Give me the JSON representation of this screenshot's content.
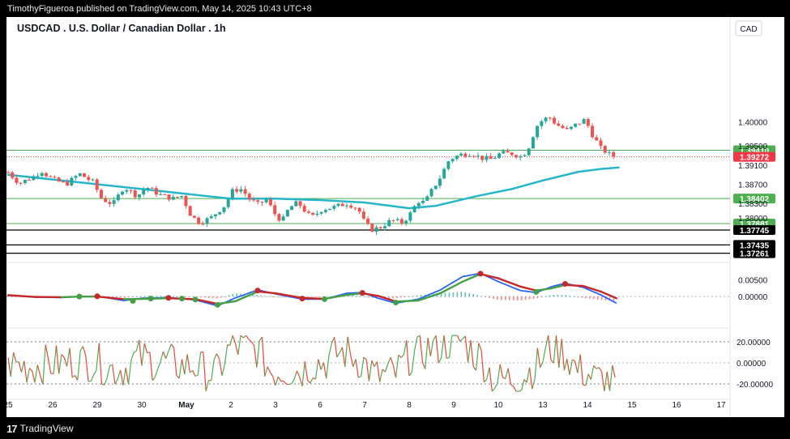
{
  "publisher_line": "TimothyFigueroa published on TradingView.com, May 14, 2025 10:43 UTC+8",
  "footer": {
    "logo": "17",
    "brand": "TradingView"
  },
  "chart_data": {
    "type": "candlestick",
    "title": "USDCAD . U.S. Dollar / Canadian Dollar . 1h",
    "currency_label": "CAD",
    "colors": {
      "up": "#26a69a",
      "down": "#ef5350",
      "ema": "#26b6c9",
      "green_level": "#4caf50",
      "black_level": "#000000",
      "last_price": "#f23645",
      "macd": "#2962ff",
      "signal": "#c62828",
      "signal_up": "#43a047"
    },
    "price_axis": {
      "ylim": [
        1.3712,
        1.4165
      ],
      "ticks": [
        "1.40000",
        "1.39500",
        "1.39100",
        "1.38700",
        "1.38300",
        "1.38000"
      ]
    },
    "x_axis": {
      "xlim": [
        0,
        16.3
      ],
      "labels": [
        {
          "x": 0,
          "label": "25"
        },
        {
          "x": 1,
          "label": "26"
        },
        {
          "x": 2,
          "label": "29"
        },
        {
          "x": 3,
          "label": "30"
        },
        {
          "x": 4,
          "label": "May"
        },
        {
          "x": 5,
          "label": "2"
        },
        {
          "x": 6,
          "label": "3"
        },
        {
          "x": 7,
          "label": "6"
        },
        {
          "x": 8,
          "label": "7"
        },
        {
          "x": 9,
          "label": "8"
        },
        {
          "x": 10,
          "label": "9"
        },
        {
          "x": 11,
          "label": "10"
        },
        {
          "x": 12,
          "label": "13"
        },
        {
          "x": 13,
          "label": "14"
        },
        {
          "x": 14,
          "label": "15"
        },
        {
          "x": 15,
          "label": "16"
        },
        {
          "x": 16,
          "label": "17"
        }
      ]
    },
    "price_path": [
      [
        0.0,
        1.3895
      ],
      [
        0.25,
        1.3872
      ],
      [
        0.55,
        1.3885
      ],
      [
        0.75,
        1.3898
      ],
      [
        1.0,
        1.388
      ],
      [
        1.3,
        1.387
      ],
      [
        1.6,
        1.3892
      ],
      [
        1.9,
        1.3875
      ],
      [
        2.1,
        1.384
      ],
      [
        2.35,
        1.3828
      ],
      [
        2.6,
        1.3865
      ],
      [
        2.9,
        1.3845
      ],
      [
        3.1,
        1.3865
      ],
      [
        3.4,
        1.3848
      ],
      [
        3.7,
        1.384
      ],
      [
        3.9,
        1.3846
      ],
      [
        4.1,
        1.3805
      ],
      [
        4.3,
        1.379
      ],
      [
        4.55,
        1.38
      ],
      [
        4.85,
        1.3825
      ],
      [
        5.05,
        1.3858
      ],
      [
        5.25,
        1.386
      ],
      [
        5.4,
        1.384
      ],
      [
        5.6,
        1.3828
      ],
      [
        5.8,
        1.3838
      ],
      [
        6.0,
        1.3806
      ],
      [
        6.15,
        1.3793
      ],
      [
        6.3,
        1.382
      ],
      [
        6.5,
        1.3832
      ],
      [
        6.8,
        1.38
      ],
      [
        7.05,
        1.3818
      ],
      [
        7.3,
        1.3822
      ],
      [
        7.6,
        1.383
      ],
      [
        7.85,
        1.382
      ],
      [
        8.0,
        1.379
      ],
      [
        8.15,
        1.3775
      ],
      [
        8.35,
        1.378
      ],
      [
        8.6,
        1.3795
      ],
      [
        8.85,
        1.379
      ],
      [
        9.0,
        1.3805
      ],
      [
        9.2,
        1.3835
      ],
      [
        9.35,
        1.3832
      ],
      [
        9.5,
        1.3856
      ],
      [
        9.7,
        1.3885
      ],
      [
        9.9,
        1.3922
      ],
      [
        10.15,
        1.3932
      ],
      [
        10.4,
        1.3935
      ],
      [
        10.6,
        1.3925
      ],
      [
        10.85,
        1.3922
      ],
      [
        11.05,
        1.3935
      ],
      [
        11.3,
        1.3934
      ],
      [
        11.5,
        1.3928
      ],
      [
        11.65,
        1.394
      ],
      [
        11.85,
        1.399
      ],
      [
        12.0,
        1.4005
      ],
      [
        12.15,
        1.401
      ],
      [
        12.3,
        1.3995
      ],
      [
        12.55,
        1.3982
      ],
      [
        12.75,
        1.3995
      ],
      [
        12.95,
        1.4005
      ],
      [
        13.1,
        1.3975
      ],
      [
        13.3,
        1.3945
      ],
      [
        13.5,
        1.3932
      ],
      [
        13.65,
        1.3927
      ]
    ],
    "ema_path": [
      [
        0.0,
        1.389
      ],
      [
        1.0,
        1.388
      ],
      [
        2.0,
        1.387
      ],
      [
        3.0,
        1.386
      ],
      [
        4.0,
        1.385
      ],
      [
        5.0,
        1.384
      ],
      [
        6.0,
        1.384
      ],
      [
        7.0,
        1.3837
      ],
      [
        8.0,
        1.3832
      ],
      [
        9.0,
        1.382
      ],
      [
        9.6,
        1.3825
      ],
      [
        10.5,
        1.3845
      ],
      [
        11.3,
        1.386
      ],
      [
        12.0,
        1.3878
      ],
      [
        12.8,
        1.3896
      ],
      [
        13.3,
        1.3902
      ],
      [
        13.7,
        1.3905
      ]
    ],
    "horizontal_levels": [
      {
        "price": "1.39410",
        "value": 1.3941,
        "kind": "green"
      },
      {
        "price": "1.39272",
        "value": 1.39272,
        "kind": "last"
      },
      {
        "price": "1.38402",
        "value": 1.38402,
        "kind": "green"
      },
      {
        "price": "1.37881",
        "value": 1.37881,
        "kind": "green"
      },
      {
        "price": "1.37745",
        "value": 1.37745,
        "kind": "black"
      },
      {
        "price": "1.37435",
        "value": 1.37435,
        "kind": "black"
      },
      {
        "price": "1.37261",
        "value": 1.37261,
        "kind": "black"
      }
    ],
    "macd_pane": {
      "ylim": [
        -0.0085,
        0.0093
      ],
      "ticks": [
        "0.00500",
        "0.00000"
      ],
      "tick_values": [
        0.005,
        0.0
      ],
      "macd": [
        [
          0.0,
          0.0005
        ],
        [
          0.6,
          -0.0002
        ],
        [
          1.2,
          -0.0003
        ],
        [
          1.6,
          0.0
        ],
        [
          2.0,
          0.0001
        ],
        [
          2.6,
          -0.0012
        ],
        [
          3.0,
          -0.0005
        ],
        [
          3.6,
          -0.0003
        ],
        [
          4.2,
          -0.001
        ],
        [
          4.7,
          -0.0028
        ],
        [
          5.1,
          -0.0004
        ],
        [
          5.6,
          0.002
        ],
        [
          6.0,
          0.0008
        ],
        [
          6.6,
          -0.0008
        ],
        [
          7.1,
          -0.0008
        ],
        [
          7.6,
          0.001
        ],
        [
          7.95,
          0.0012
        ],
        [
          8.3,
          -0.0005
        ],
        [
          8.7,
          -0.002
        ],
        [
          9.2,
          -0.0008
        ],
        [
          9.7,
          0.002
        ],
        [
          10.2,
          0.006
        ],
        [
          10.6,
          0.007
        ],
        [
          11.0,
          0.0045
        ],
        [
          11.5,
          0.0018
        ],
        [
          11.85,
          0.0012
        ],
        [
          12.2,
          0.003
        ],
        [
          12.5,
          0.004
        ],
        [
          12.9,
          0.0028
        ],
        [
          13.3,
          0.0005
        ],
        [
          13.65,
          -0.002
        ]
      ],
      "signal": [
        [
          0.0,
          0.0004
        ],
        [
          0.6,
          -0.0001
        ],
        [
          1.2,
          -0.0002
        ],
        [
          1.6,
          0.0
        ],
        [
          2.0,
          0.0
        ],
        [
          2.6,
          -0.0008
        ],
        [
          3.0,
          -0.0007
        ],
        [
          3.6,
          -0.0005
        ],
        [
          4.2,
          -0.0008
        ],
        [
          4.7,
          -0.0022
        ],
        [
          5.1,
          -0.0014
        ],
        [
          5.6,
          0.0015
        ],
        [
          6.0,
          0.001
        ],
        [
          6.6,
          -0.0004
        ],
        [
          7.1,
          -0.0007
        ],
        [
          7.6,
          0.0005
        ],
        [
          7.95,
          0.001
        ],
        [
          8.3,
          0.0002
        ],
        [
          8.7,
          -0.0015
        ],
        [
          9.2,
          -0.0012
        ],
        [
          9.7,
          0.001
        ],
        [
          10.2,
          0.0045
        ],
        [
          10.6,
          0.0068
        ],
        [
          11.0,
          0.0055
        ],
        [
          11.5,
          0.003
        ],
        [
          11.85,
          0.0018
        ],
        [
          12.2,
          0.0025
        ],
        [
          12.5,
          0.0035
        ],
        [
          12.9,
          0.0032
        ],
        [
          13.3,
          0.0015
        ],
        [
          13.65,
          -0.0005
        ]
      ],
      "cross_dots": [
        {
          "x": 1.6,
          "y": 0.0,
          "color": "green"
        },
        {
          "x": 2.0,
          "y": 0.0001,
          "color": "red"
        },
        {
          "x": 2.8,
          "y": -0.0013,
          "color": "green"
        },
        {
          "x": 3.2,
          "y": -0.0006,
          "color": "green"
        },
        {
          "x": 3.6,
          "y": -0.0004,
          "color": "red"
        },
        {
          "x": 3.9,
          "y": -0.0006,
          "color": "green"
        },
        {
          "x": 4.2,
          "y": -0.0009,
          "color": "green"
        },
        {
          "x": 4.7,
          "y": -0.0025,
          "color": "green"
        },
        {
          "x": 5.6,
          "y": 0.0018,
          "color": "red"
        },
        {
          "x": 6.6,
          "y": -0.0006,
          "color": "red"
        },
        {
          "x": 7.1,
          "y": -0.0008,
          "color": "green"
        },
        {
          "x": 7.95,
          "y": 0.0011,
          "color": "red"
        },
        {
          "x": 8.7,
          "y": -0.0018,
          "color": "green"
        },
        {
          "x": 10.6,
          "y": 0.0069,
          "color": "red"
        },
        {
          "x": 11.85,
          "y": 0.0014,
          "color": "green"
        },
        {
          "x": 12.5,
          "y": 0.0038,
          "color": "red"
        }
      ]
    },
    "osc_pane": {
      "ylim": [
        -30,
        30
      ],
      "ticks": [
        "20.00000",
        "0.00000",
        "-20.00000"
      ],
      "tick_values": [
        20,
        0,
        -20
      ],
      "overbought": 20,
      "oversold": -20
    }
  }
}
